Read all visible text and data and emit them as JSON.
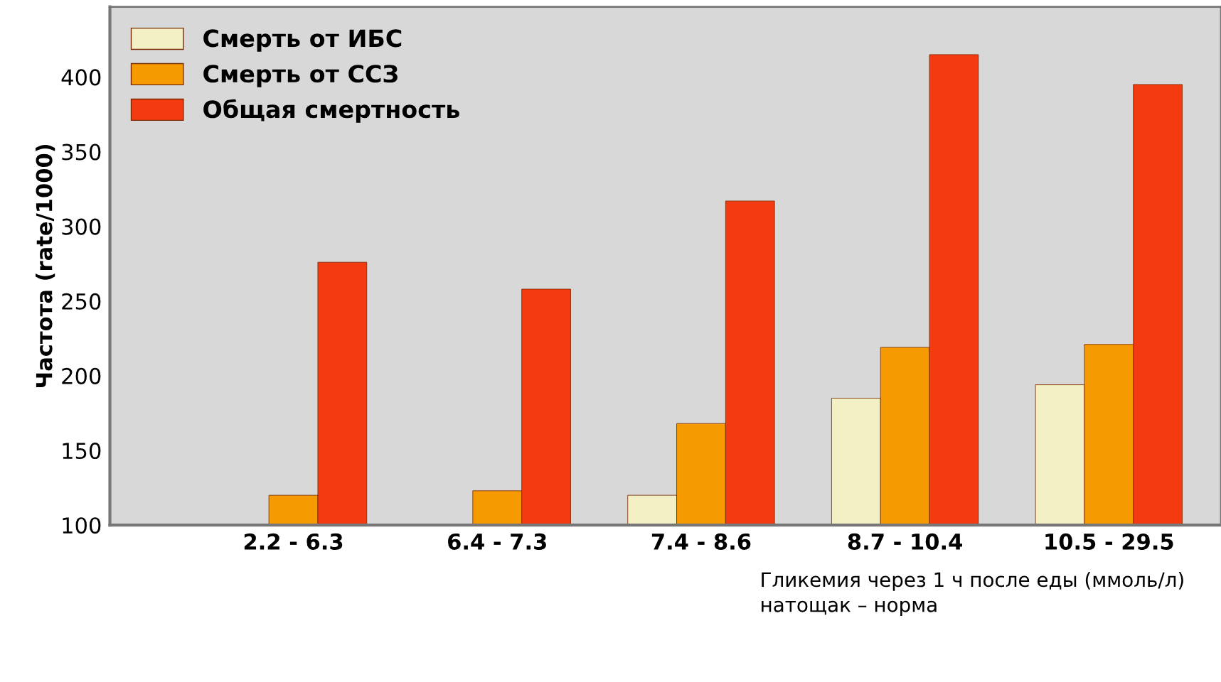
{
  "chart_data": {
    "type": "bar",
    "ylabel": "Частота (rate/1000)",
    "xlabel": "Гликемия через 1 ч после еды (ммоль/л)\nнатощак – норма",
    "categories": [
      "2.2 - 6.3",
      "6.4 - 7.3",
      "7.4 - 8.6",
      "8.7 - 10.4",
      "10.5 - 29.5"
    ],
    "series": [
      {
        "name": "Смерть от ИБС",
        "color": "#f2f0c4",
        "values": [
          null,
          null,
          120,
          185,
          194
        ]
      },
      {
        "name": "Смерть от ССЗ",
        "color": "#f59a00",
        "values": [
          120,
          123,
          168,
          219,
          221
        ]
      },
      {
        "name": "Общая смертность",
        "color": "#f43a10",
        "values": [
          276,
          258,
          317,
          415,
          395
        ]
      }
    ],
    "ylim": [
      100,
      447
    ],
    "yticks": [
      100,
      150,
      200,
      250,
      300,
      350,
      400
    ],
    "grid": false,
    "legend": "top left"
  }
}
